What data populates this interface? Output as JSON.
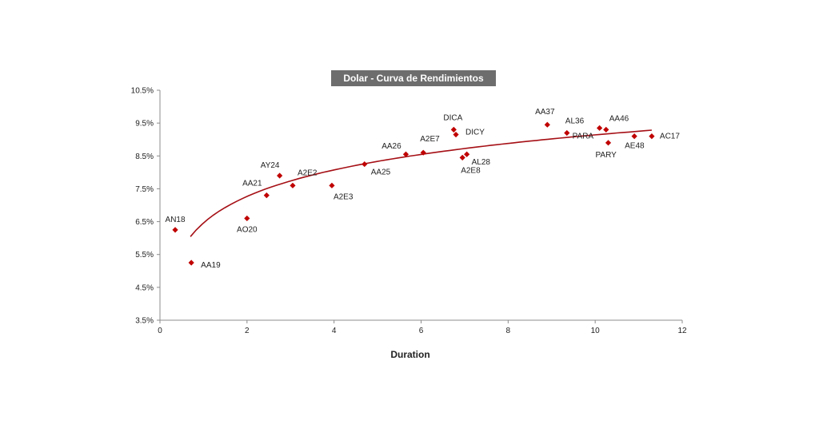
{
  "chart_data": {
    "type": "scatter",
    "title": "Dolar - Curva de Rendimientos",
    "xlabel": "Duration",
    "ylabel": "",
    "xlim": [
      0,
      12
    ],
    "ylim": [
      3.5,
      10.5
    ],
    "x_ticks": [
      "0",
      "2",
      "4",
      "6",
      "8",
      "10",
      "12"
    ],
    "y_ticks": [
      "3.5%",
      "4.5%",
      "5.5%",
      "6.5%",
      "7.5%",
      "8.5%",
      "9.5%",
      "10.5%"
    ],
    "grid": false,
    "legend": "none",
    "colors": {
      "marker": "#c00000",
      "trendline": "#a50f15",
      "title_bg": "#6d6d6d",
      "axis": "#8c8c8c"
    },
    "points": [
      {
        "label": "AN18",
        "x": 0.35,
        "y": 6.25
      },
      {
        "label": "AA19",
        "x": 0.72,
        "y": 5.25
      },
      {
        "label": "AO20",
        "x": 2.0,
        "y": 6.6
      },
      {
        "label": "AA21",
        "x": 2.45,
        "y": 7.3
      },
      {
        "label": "AY24",
        "x": 2.75,
        "y": 7.9
      },
      {
        "label": "A2E2",
        "x": 3.05,
        "y": 7.6
      },
      {
        "label": "A2E3",
        "x": 3.95,
        "y": 7.6
      },
      {
        "label": "AA25",
        "x": 4.7,
        "y": 8.25
      },
      {
        "label": "AA26",
        "x": 5.65,
        "y": 8.55
      },
      {
        "label": "A2E7",
        "x": 6.05,
        "y": 8.6
      },
      {
        "label": "DICA",
        "x": 6.75,
        "y": 9.3
      },
      {
        "label": "DICY",
        "x": 6.8,
        "y": 9.15
      },
      {
        "label": "AL28",
        "x": 7.05,
        "y": 8.55
      },
      {
        "label": "A2E8",
        "x": 6.95,
        "y": 8.45
      },
      {
        "label": "AA37",
        "x": 8.9,
        "y": 9.45
      },
      {
        "label": "AL36",
        "x": 9.35,
        "y": 9.2
      },
      {
        "label": "PARA",
        "x": 10.1,
        "y": 9.35
      },
      {
        "label": "AA46",
        "x": 10.25,
        "y": 9.3
      },
      {
        "label": "PARY",
        "x": 10.3,
        "y": 8.9
      },
      {
        "label": "AE48",
        "x": 10.9,
        "y": 9.1
      },
      {
        "label": "AC17",
        "x": 11.3,
        "y": 9.1
      }
    ],
    "trendline": {
      "type": "logarithmic",
      "from_x": 0.7,
      "to_x": 11.3
    }
  }
}
